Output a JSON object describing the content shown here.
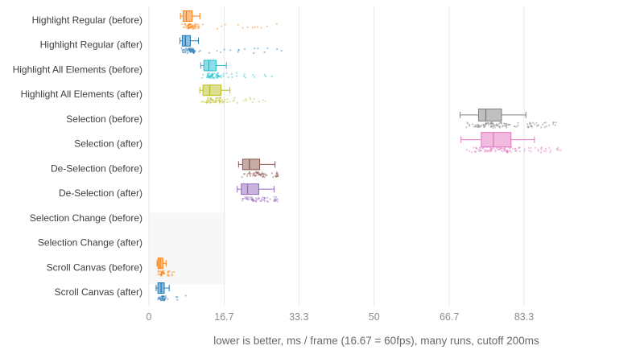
{
  "chart_data": {
    "type": "box",
    "orientation": "horizontal",
    "title": "",
    "xlabel": "lower is better, ms / frame (16.67 = 60fps), many runs, cutoff 200ms",
    "xticks": [
      "0",
      "16.7",
      "33.3",
      "50",
      "66.7",
      "83.3"
    ],
    "xtick_values": [
      0,
      16.7,
      33.3,
      50,
      66.7,
      83.3
    ],
    "xlim": [
      0,
      108.5
    ],
    "grid": true,
    "legend": "none",
    "shaded_region": {
      "x0": 0,
      "x1": 17.0,
      "row_start": 7.9,
      "row_end": 10.8,
      "color": "#000000",
      "opacity": 0.03
    },
    "rows": [
      {
        "label": "Highlight Regular (before)",
        "color": "#ff7f0e",
        "box": {
          "whisker_low": 7.0,
          "q1": 7.6,
          "median": 8.3,
          "q3": 9.6,
          "whisker_high": 11.3
        },
        "points": {
          "max": 28.7,
          "count": 70
        }
      },
      {
        "label": "Highlight Regular (after)",
        "color": "#1f77b4",
        "box": {
          "whisker_low": 6.9,
          "q1": 7.4,
          "median": 8.1,
          "q3": 9.2,
          "whisker_high": 11.0
        },
        "points": {
          "max": 29.5,
          "count": 70
        }
      },
      {
        "label": "Highlight All Elements (before)",
        "color": "#17becf",
        "box": {
          "whisker_low": 11.5,
          "q1": 12.2,
          "median": 13.3,
          "q3": 14.9,
          "whisker_high": 17.2
        },
        "points": {
          "max": 27.8,
          "count": 70
        }
      },
      {
        "label": "Highlight All Elements (after)",
        "color": "#bcbd22",
        "box": {
          "whisker_low": 11.3,
          "q1": 12.0,
          "median": 13.5,
          "q3": 16.0,
          "whisker_high": 18.0
        },
        "points": {
          "max": 26.9,
          "count": 70
        }
      },
      {
        "label": "Selection (before)",
        "color": "#7f7f7f",
        "box": {
          "whisker_low": 69.1,
          "q1": 73.2,
          "median": 74.8,
          "q3": 78.3,
          "whisker_high": 83.7
        },
        "points": {
          "max": 90.7,
          "count": 110
        }
      },
      {
        "label": "Selection (after)",
        "color": "#e377c2",
        "box": {
          "whisker_low": 69.3,
          "q1": 73.8,
          "median": 76.5,
          "q3": 80.4,
          "whisker_high": 85.6
        },
        "points": {
          "max": 92.5,
          "count": 110
        }
      },
      {
        "label": "De-Selection (before)",
        "color": "#8c564b",
        "box": {
          "whisker_low": 19.9,
          "q1": 20.8,
          "median": 22.3,
          "q3": 24.6,
          "whisker_high": 28.0
        },
        "points": {
          "max": 28.8,
          "count": 60
        }
      },
      {
        "label": "De-Selection (after)",
        "color": "#9467bd",
        "box": {
          "whisker_low": 19.6,
          "q1": 20.5,
          "median": 21.9,
          "q3": 24.4,
          "whisker_high": 27.8
        },
        "points": {
          "max": 28.6,
          "count": 60
        }
      },
      {
        "label": "Selection Change (before)",
        "color": "#d62728",
        "box": null,
        "points": null
      },
      {
        "label": "Selection Change (after)",
        "color": "#2ca02c",
        "box": null,
        "points": null
      },
      {
        "label": "Scroll Canvas (before)",
        "color": "#ff7f0e",
        "box": {
          "whisker_low": 1.8,
          "q1": 2.0,
          "median": 2.5,
          "q3": 3.1,
          "whisker_high": 3.8
        },
        "points": {
          "max": 5.6,
          "count": 40
        }
      },
      {
        "label": "Scroll Canvas (after)",
        "color": "#1f77b4",
        "box": {
          "whisker_low": 1.6,
          "q1": 2.0,
          "median": 2.7,
          "q3": 3.4,
          "whisker_high": 4.5
        },
        "points": {
          "max": 8.4,
          "count": 40
        }
      }
    ],
    "style": {
      "grid_color": "#e9e9e9",
      "tick_label_color": "#8c8c8c",
      "category_label_color": "#3d3d3d",
      "axis_title_color": "#696969",
      "background": "#ffffff"
    }
  }
}
